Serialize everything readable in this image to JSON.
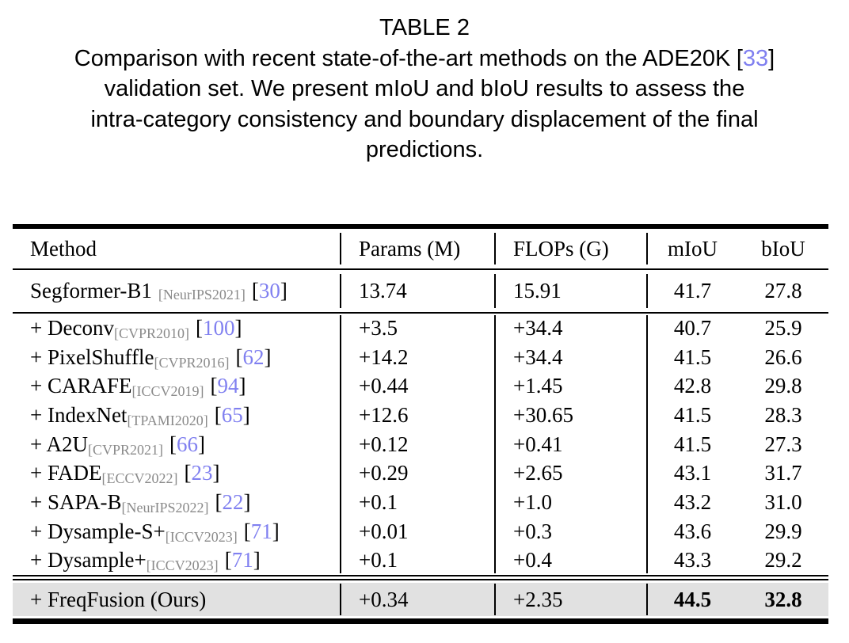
{
  "title": "TABLE 2",
  "caption": {
    "line1_text": "Comparison with recent state-of-the-art methods on the ADE20K",
    "line1_ref": "33",
    "line2": "validation set. We present mIoU and bIoU results to assess the",
    "line3": "intra-category consistency and boundary displacement of the final",
    "line4": "predictions."
  },
  "marks": {
    "open": "[",
    "close": "]"
  },
  "colors": {
    "ref_blue": "#8080f0",
    "tag_gray": "#8a8a8a",
    "highlight_bg": "#e1e1e1"
  },
  "table": {
    "headers": [
      "Method",
      "Params (M)",
      "FLOPs (G)",
      "mIoU",
      "bIoU"
    ],
    "baseline_row": {
      "name": "Segformer-B1",
      "tag": "[NeurIPS2021]",
      "ref": "30",
      "params": "13.74",
      "flops": "15.91",
      "miou": "41.7",
      "biou": "27.8"
    },
    "rows": [
      {
        "name": "+ Deconv",
        "tag": "[CVPR2010]",
        "ref": "100",
        "params": "+3.5",
        "flops": "+34.4",
        "miou": "40.7",
        "biou": "25.9"
      },
      {
        "name": "+ PixelShuffle",
        "tag": "[CVPR2016]",
        "ref": "62",
        "params": "+14.2",
        "flops": "+34.4",
        "miou": "41.5",
        "biou": "26.6"
      },
      {
        "name": "+ CARAFE",
        "tag": "[ICCV2019]",
        "ref": "94",
        "params": "+0.44",
        "flops": "+1.45",
        "miou": "42.8",
        "biou": "29.8"
      },
      {
        "name": "+ IndexNet",
        "tag": "[TPAMI2020]",
        "ref": "65",
        "params": "+12.6",
        "flops": "+30.65",
        "miou": "41.5",
        "biou": "28.3"
      },
      {
        "name": "+ A2U",
        "tag": "[CVPR2021]",
        "ref": "66",
        "params": "+0.12",
        "flops": "+0.41",
        "miou": "41.5",
        "biou": "27.3"
      },
      {
        "name": "+ FADE",
        "tag": "[ECCV2022]",
        "ref": "23",
        "params": "+0.29",
        "flops": "+2.65",
        "miou": "43.1",
        "biou": "31.7"
      },
      {
        "name": "+ SAPA-B",
        "tag": "[NeurIPS2022]",
        "ref": "22",
        "params": "+0.1",
        "flops": "+1.0",
        "miou": "43.2",
        "biou": "31.0"
      },
      {
        "name": "+ Dysample-S+",
        "tag": "[ICCV2023]",
        "ref": "71",
        "params": "+0.01",
        "flops": "+0.3",
        "miou": "43.6",
        "biou": "29.9"
      },
      {
        "name": "+ Dysample+",
        "tag": "[ICCV2023]",
        "ref": "71",
        "params": "+0.1",
        "flops": "+0.4",
        "miou": "43.3",
        "biou": "29.2"
      }
    ],
    "ours_row": {
      "name": "+ FreqFusion (Ours)",
      "params": "+0.34",
      "flops": "+2.35",
      "miou": "44.5",
      "biou": "32.8"
    }
  }
}
